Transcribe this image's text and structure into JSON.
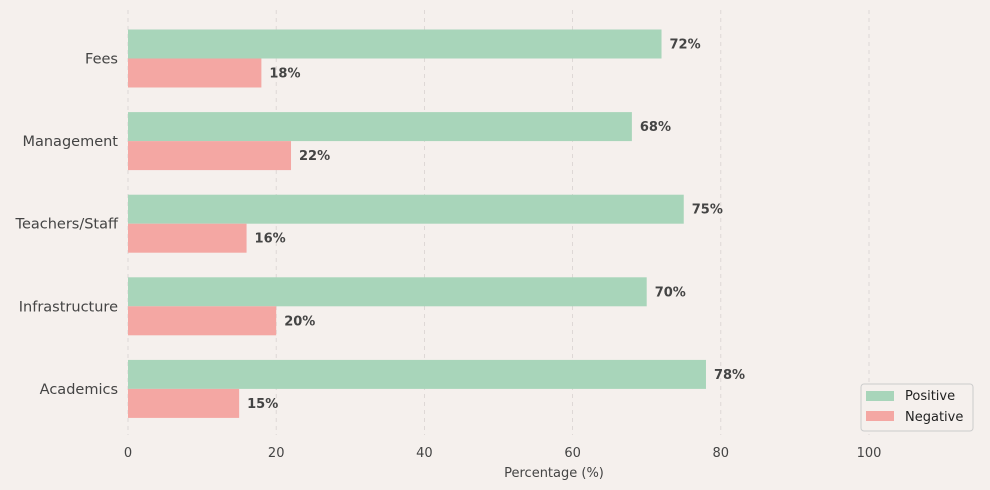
{
  "chart_data": {
    "type": "bar",
    "orientation": "horizontal",
    "categories": [
      "Fees",
      "Management",
      "Teachers/Staff",
      "Infrastructure",
      "Academics"
    ],
    "series": [
      {
        "name": "Positive",
        "color": "#a8d5ba",
        "values": [
          72,
          68,
          75,
          70,
          78
        ]
      },
      {
        "name": "Negative",
        "color": "#f4a7a3",
        "values": [
          18,
          22,
          16,
          20,
          15
        ]
      }
    ],
    "data_labels": {
      "Positive": [
        "72%",
        "68%",
        "75%",
        "70%",
        "78%"
      ],
      "Negative": [
        "18%",
        "22%",
        "16%",
        "20%",
        "15%"
      ]
    },
    "xlabel": "Percentage (%)",
    "xticks": [
      "0",
      "20",
      "40",
      "60",
      "80",
      "100"
    ],
    "xtick_values": [
      0,
      20,
      40,
      60,
      80,
      100
    ],
    "xlim": [
      0,
      115
    ],
    "grid": "x-dashed",
    "legend_position": "lower-right",
    "background_color": "#f5f0ed"
  }
}
